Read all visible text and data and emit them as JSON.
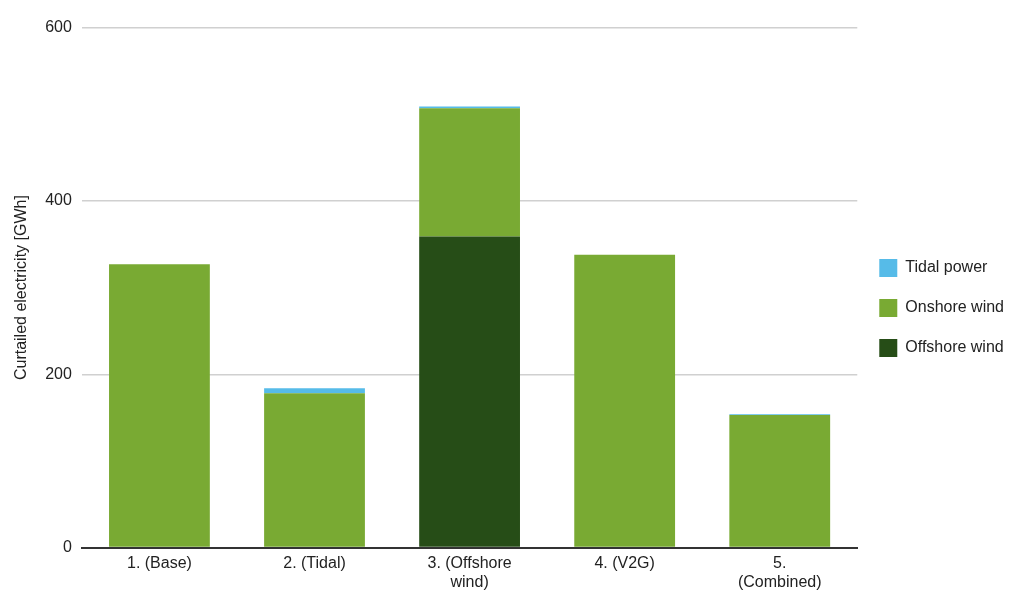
{
  "chart_data": {
    "type": "bar",
    "stacked": true,
    "ylabel": "Curtailed electricity [GWh]",
    "categories": [
      "1. (Base)",
      "2. (Tidal)",
      "3. (Offshore wind)",
      "4. (V2G)",
      "5. (Combined)"
    ],
    "series": [
      {
        "name": "Offshore wind",
        "color": "#264d17",
        "values": [
          0,
          0,
          359,
          0,
          0
        ]
      },
      {
        "name": "Onshore wind",
        "color": "#79aa33",
        "values": [
          327,
          178,
          148,
          338,
          153
        ]
      },
      {
        "name": "Tidal power",
        "color": "#56bbe8",
        "values": [
          0,
          6,
          2,
          0,
          1
        ]
      }
    ],
    "ylim": [
      0,
      600
    ],
    "yticks": [
      0,
      200,
      400,
      600
    ],
    "grid": "y",
    "legend": "right"
  }
}
